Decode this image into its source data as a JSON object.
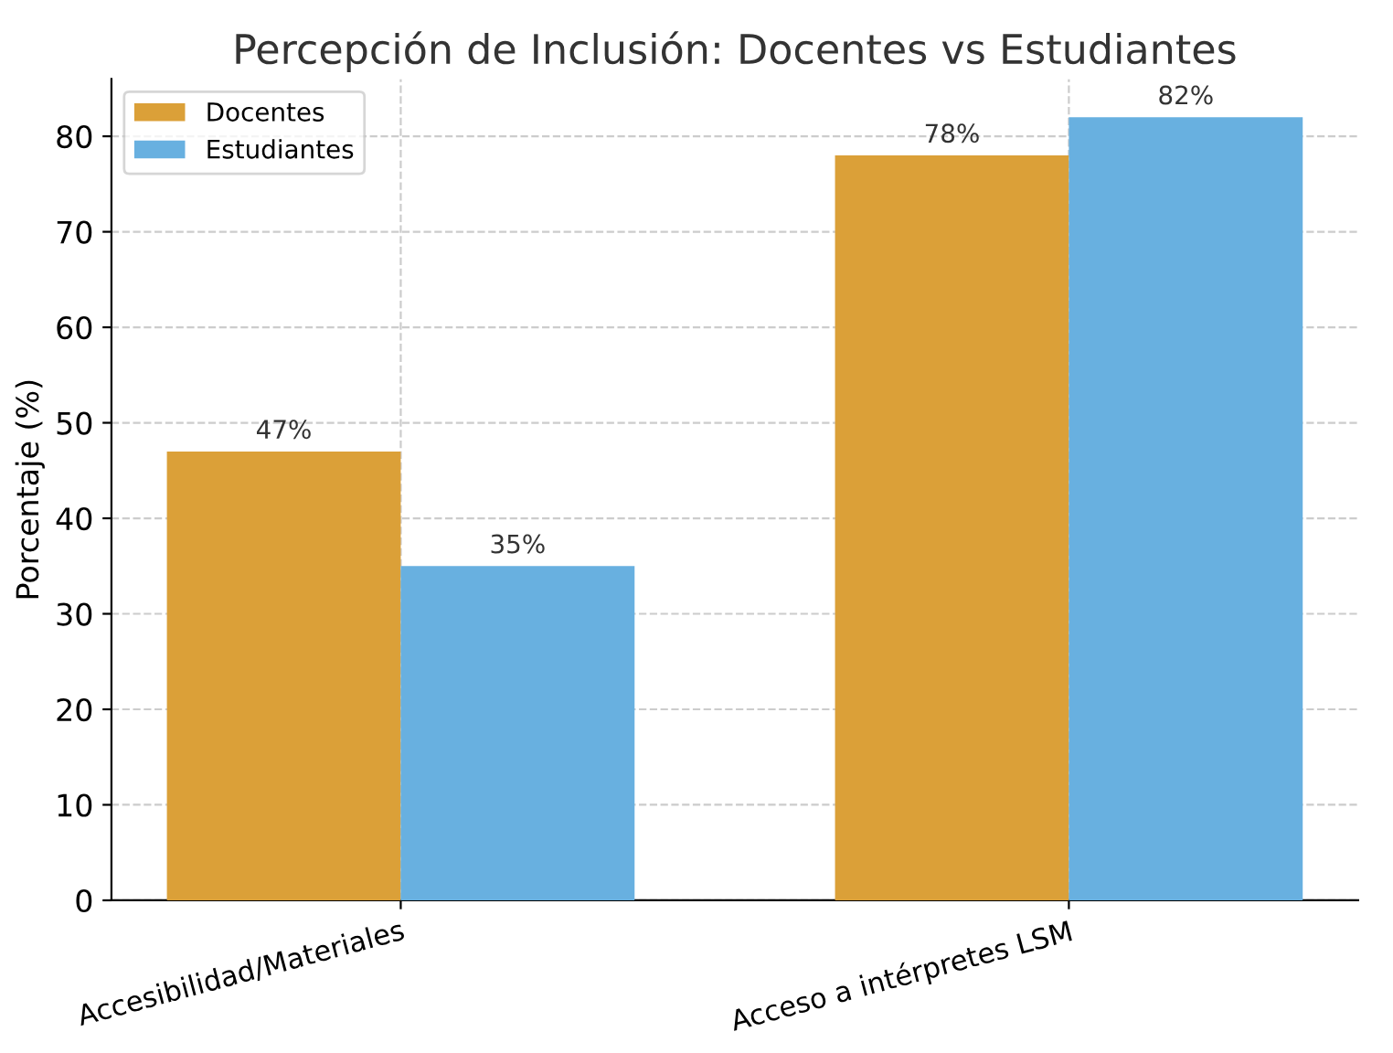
{
  "chart_data": {
    "type": "bar",
    "title": "Percepción de Inclusión: Docentes vs Estudiantes",
    "ylabel": "Porcentaje (%)",
    "categories": [
      "Accesibilidad/Materiales",
      "Acceso a intérpretes LSM"
    ],
    "series": [
      {
        "name": "Docentes",
        "color": "#dba038",
        "values": [
          47,
          78
        ],
        "value_labels": [
          "47%",
          "78%"
        ]
      },
      {
        "name": "Estudiantes",
        "color": "#68b0e0",
        "values": [
          35,
          82
        ],
        "value_labels": [
          "35%",
          "82%"
        ]
      }
    ],
    "ylim": [
      0,
      86
    ],
    "yticks": [
      0,
      10,
      20,
      30,
      40,
      50,
      60,
      70,
      80
    ],
    "grid": true,
    "legend": "top left"
  }
}
